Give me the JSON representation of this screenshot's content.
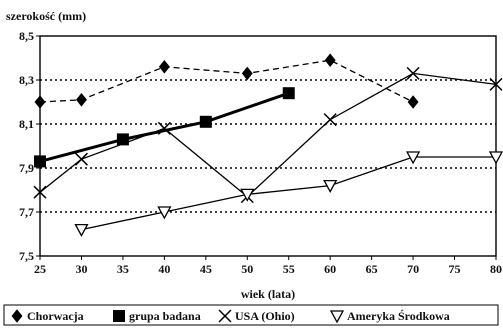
{
  "chart_data": {
    "type": "line",
    "ylabel": "szerokość (mm)",
    "xlabel": "wiek (lata)",
    "x_ticks": [
      "25",
      "30",
      "35",
      "40",
      "45",
      "50",
      "55",
      "60",
      "65",
      "70",
      "75",
      "80"
    ],
    "y_ticks": [
      "7,5",
      "7,7",
      "7,9",
      "8,1",
      "8,3",
      "8,5"
    ],
    "xlim": [
      25,
      80
    ],
    "ylim": [
      7.5,
      8.5
    ],
    "grid": "horizontal dotted",
    "legend_position": "bottom",
    "series": [
      {
        "name": "Chorwacja",
        "marker": "diamond-filled",
        "dash": "dashed",
        "points": [
          [
            25,
            8.2
          ],
          [
            30,
            8.21
          ],
          [
            40,
            8.36
          ],
          [
            50,
            8.33
          ],
          [
            60,
            8.39
          ],
          [
            70,
            8.2
          ]
        ]
      },
      {
        "name": "grupa badana",
        "marker": "square-filled",
        "dash": "solid-thick",
        "points": [
          [
            25,
            7.93
          ],
          [
            35,
            8.03
          ],
          [
            45,
            8.11
          ],
          [
            55,
            8.24
          ]
        ]
      },
      {
        "name": "USA (Ohio)",
        "marker": "x",
        "dash": "solid",
        "points": [
          [
            25,
            7.79
          ],
          [
            30,
            7.94
          ],
          [
            40,
            8.08
          ],
          [
            50,
            7.77
          ],
          [
            60,
            8.12
          ],
          [
            70,
            8.33
          ],
          [
            80,
            8.28
          ]
        ]
      },
      {
        "name": "Ameryka Środkowa",
        "marker": "triangle-down-open",
        "dash": "solid",
        "points": [
          [
            30,
            7.62
          ],
          [
            40,
            7.7
          ],
          [
            50,
            7.78
          ],
          [
            60,
            7.82
          ],
          [
            70,
            7.95
          ],
          [
            80,
            7.95
          ]
        ]
      }
    ]
  }
}
